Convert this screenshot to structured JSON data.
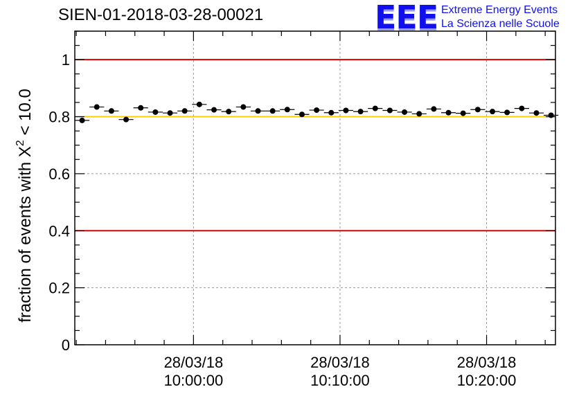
{
  "header": {
    "run_id": "SIEN-01-2018-03-28-00021"
  },
  "logo": {
    "mark": "EEE",
    "line1": "Extreme Energy Events",
    "line2": "La Scienza nelle Scuole"
  },
  "colors": {
    "reference_red": "#dd0000",
    "reference_yellow": "#ffcc00",
    "points": "#000000",
    "grid": "#999999"
  },
  "chart_data": {
    "type": "scatter",
    "title": "SIEN-01-2018-03-28-00021",
    "xlabel": "",
    "ylabel_prefix": "fraction of events with ",
    "ylabel_symbol": "X",
    "ylabel_sup": "2",
    "ylabel_suffix": " < 10.0",
    "ylim": [
      0,
      1.1
    ],
    "xlim_minutes": [
      -8.1,
      24.7
    ],
    "yticks": [
      {
        "value": 0,
        "label": "0"
      },
      {
        "value": 0.2,
        "label": "0.2"
      },
      {
        "value": 0.4,
        "label": "0.4"
      },
      {
        "value": 0.6,
        "label": "0.6"
      },
      {
        "value": 0.8,
        "label": "0.8"
      },
      {
        "value": 1,
        "label": "1"
      }
    ],
    "xticks": [
      {
        "minute": 0,
        "date": "28/03/18",
        "time": "10:00:00"
      },
      {
        "minute": 10,
        "date": "28/03/18",
        "time": "10:10:00"
      },
      {
        "minute": 20,
        "date": "28/03/18",
        "time": "10:20:00"
      }
    ],
    "reference_lines": [
      {
        "value": 1.0,
        "color": "#dd0000"
      },
      {
        "value": 0.8,
        "color": "#ffcc00"
      },
      {
        "value": 0.4,
        "color": "#dd0000"
      }
    ],
    "bin_width_minutes": 1,
    "x_minutes": [
      -7.6,
      -6.6,
      -5.6,
      -4.6,
      -3.6,
      -2.6,
      -1.6,
      -0.6,
      0.4,
      1.4,
      2.4,
      3.4,
      4.4,
      5.4,
      6.4,
      7.4,
      8.4,
      9.4,
      10.4,
      11.4,
      12.4,
      13.4,
      14.4,
      15.4,
      16.4,
      17.4,
      18.4,
      19.4,
      20.4,
      21.4,
      22.4,
      23.4,
      24.4
    ],
    "values": [
      0.787,
      0.834,
      0.82,
      0.79,
      0.831,
      0.816,
      0.813,
      0.82,
      0.843,
      0.824,
      0.818,
      0.834,
      0.82,
      0.82,
      0.825,
      0.808,
      0.823,
      0.814,
      0.822,
      0.818,
      0.829,
      0.822,
      0.816,
      0.81,
      0.827,
      0.814,
      0.812,
      0.825,
      0.818,
      0.815,
      0.829,
      0.813,
      0.805
    ]
  }
}
